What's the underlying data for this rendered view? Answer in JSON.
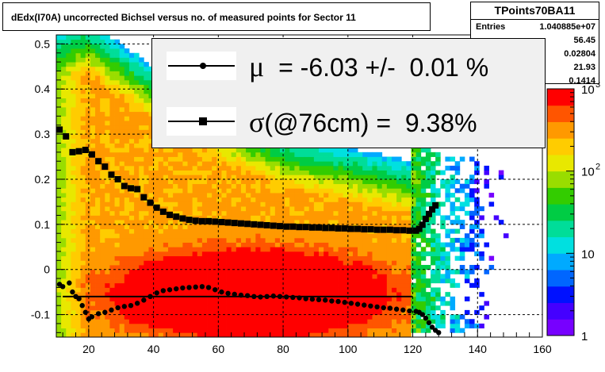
{
  "title": "dEdx(I70A) uncorrected Bichsel versus no. of measured points for Sector 11",
  "stats": {
    "name": "TPoints70BA11",
    "rows": [
      {
        "label": "Entries",
        "value": "1.040885e+07"
      },
      {
        "label": "",
        "value": "56.45"
      },
      {
        "label": "",
        "value": "0.02804"
      },
      {
        "label": "",
        "value": "21.93"
      },
      {
        "label": "",
        "value": "0.1414"
      }
    ]
  },
  "legend": {
    "mu_symbol": "μ",
    "mu_text": "  = -6.03 +/-  0.01 %",
    "sigma_symbol": "σ",
    "sigma_text": "(@76cm) =  9.38%"
  },
  "colorbar": {
    "tick_labels": [
      "1",
      "10",
      "10",
      "10"
    ],
    "exponents": [
      "",
      "",
      "2",
      "3"
    ]
  },
  "chart_data": {
    "type": "heatmap",
    "title": "dEdx(I70A) uncorrected Bichsel versus no. of measured points for Sector 11",
    "xlabel": "",
    "ylabel": "",
    "xlim": [
      10,
      160
    ],
    "ylim": [
      -0.15,
      0.52
    ],
    "x_ticks": [
      20,
      40,
      60,
      80,
      100,
      120,
      140,
      160
    ],
    "y_ticks": [
      -0.1,
      0,
      0.1,
      0.2,
      0.3,
      0.4,
      0.5
    ],
    "z_scale": "log",
    "zlim": [
      1,
      1000
    ],
    "grid": true,
    "palette": [
      "#7700ff",
      "#4400ff",
      "#0011ff",
      "#0066ff",
      "#00aaff",
      "#00e0e0",
      "#00dd99",
      "#00cc44",
      "#33cc00",
      "#99dd00",
      "#e8e800",
      "#ffcc00",
      "#ff9900",
      "#ff5500",
      "#ff0000"
    ],
    "density_model": {
      "core": {
        "x": 70,
        "y": -0.055,
        "sx": 22,
        "sy": 0.05,
        "amp": 2.9
      },
      "band_top_y": [
        [
          10,
          0.55
        ],
        [
          20,
          0.55
        ],
        [
          40,
          0.45
        ],
        [
          60,
          0.36
        ],
        [
          80,
          0.3
        ],
        [
          100,
          0.27
        ],
        [
          120,
          0.24
        ],
        [
          130,
          0.2
        ]
      ],
      "band_bottom_y": -0.15,
      "x_edge": 120,
      "tail_x_max": 148
    },
    "series": [
      {
        "name": "sigma",
        "marker": "square",
        "points": [
          [
            11,
            0.31
          ],
          [
            13,
            0.295
          ],
          [
            15,
            0.26
          ],
          [
            17,
            0.262
          ],
          [
            19,
            0.265
          ],
          [
            21,
            0.255
          ],
          [
            23,
            0.24
          ],
          [
            25,
            0.228
          ],
          [
            27,
            0.21
          ],
          [
            29,
            0.2
          ],
          [
            31,
            0.185
          ],
          [
            33,
            0.18
          ],
          [
            35,
            0.178
          ],
          [
            37,
            0.16
          ],
          [
            39,
            0.148
          ],
          [
            41,
            0.137
          ],
          [
            43,
            0.128
          ],
          [
            45,
            0.121
          ],
          [
            47,
            0.117
          ],
          [
            49,
            0.113
          ],
          [
            51,
            0.11
          ],
          [
            53,
            0.108
          ],
          [
            55,
            0.107
          ],
          [
            57,
            0.107
          ],
          [
            59,
            0.106
          ],
          [
            61,
            0.105
          ],
          [
            63,
            0.104
          ],
          [
            65,
            0.103
          ],
          [
            67,
            0.102
          ],
          [
            69,
            0.101
          ],
          [
            71,
            0.1
          ],
          [
            73,
            0.099
          ],
          [
            75,
            0.098
          ],
          [
            77,
            0.097
          ],
          [
            79,
            0.096
          ],
          [
            81,
            0.095
          ],
          [
            83,
            0.095
          ],
          [
            85,
            0.094
          ],
          [
            87,
            0.094
          ],
          [
            89,
            0.093
          ],
          [
            91,
            0.093
          ],
          [
            93,
            0.092
          ],
          [
            95,
            0.092
          ],
          [
            97,
            0.091
          ],
          [
            99,
            0.091
          ],
          [
            101,
            0.09
          ],
          [
            103,
            0.09
          ],
          [
            105,
            0.089
          ],
          [
            107,
            0.089
          ],
          [
            109,
            0.088
          ],
          [
            111,
            0.088
          ],
          [
            113,
            0.088
          ],
          [
            115,
            0.087
          ],
          [
            117,
            0.087
          ],
          [
            119,
            0.086
          ],
          [
            121,
            0.086
          ],
          [
            122,
            0.09
          ],
          [
            123,
            0.099
          ],
          [
            124,
            0.112
          ],
          [
            125,
            0.123
          ],
          [
            126,
            0.133
          ],
          [
            127,
            0.142
          ]
        ]
      },
      {
        "name": "mu",
        "marker": "circle",
        "points": [
          [
            11,
            -0.033
          ],
          [
            12,
            -0.038
          ],
          [
            14,
            -0.03
          ],
          [
            15,
            -0.05
          ],
          [
            16,
            -0.06
          ],
          [
            17,
            -0.065
          ],
          [
            18,
            -0.08
          ],
          [
            19,
            -0.095
          ],
          [
            20,
            -0.11
          ],
          [
            21,
            -0.105
          ],
          [
            23,
            -0.098
          ],
          [
            25,
            -0.095
          ],
          [
            27,
            -0.09
          ],
          [
            29,
            -0.085
          ],
          [
            31,
            -0.082
          ],
          [
            33,
            -0.08
          ],
          [
            35,
            -0.075
          ],
          [
            37,
            -0.068
          ],
          [
            39,
            -0.06
          ],
          [
            41,
            -0.052
          ],
          [
            43,
            -0.047
          ],
          [
            45,
            -0.045
          ],
          [
            47,
            -0.043
          ],
          [
            49,
            -0.041
          ],
          [
            51,
            -0.04
          ],
          [
            53,
            -0.039
          ],
          [
            55,
            -0.038
          ],
          [
            57,
            -0.04
          ],
          [
            59,
            -0.045
          ],
          [
            61,
            -0.05
          ],
          [
            63,
            -0.053
          ],
          [
            65,
            -0.055
          ],
          [
            67,
            -0.057
          ],
          [
            69,
            -0.058
          ],
          [
            71,
            -0.06
          ],
          [
            73,
            -0.061
          ],
          [
            75,
            -0.06
          ],
          [
            77,
            -0.059
          ],
          [
            79,
            -0.06
          ],
          [
            81,
            -0.061
          ],
          [
            83,
            -0.062
          ],
          [
            85,
            -0.063
          ],
          [
            87,
            -0.065
          ],
          [
            89,
            -0.066
          ],
          [
            91,
            -0.067
          ],
          [
            93,
            -0.068
          ],
          [
            95,
            -0.07
          ],
          [
            97,
            -0.071
          ],
          [
            99,
            -0.073
          ],
          [
            101,
            -0.075
          ],
          [
            103,
            -0.077
          ],
          [
            105,
            -0.079
          ],
          [
            107,
            -0.081
          ],
          [
            109,
            -0.083
          ],
          [
            111,
            -0.085
          ],
          [
            113,
            -0.086
          ],
          [
            115,
            -0.088
          ],
          [
            117,
            -0.09
          ],
          [
            119,
            -0.092
          ],
          [
            121,
            -0.093
          ],
          [
            122,
            -0.095
          ],
          [
            123,
            -0.1
          ],
          [
            124,
            -0.108
          ],
          [
            125,
            -0.118
          ],
          [
            126,
            -0.128
          ],
          [
            127,
            -0.135
          ],
          [
            128,
            -0.14
          ]
        ]
      }
    ],
    "reference_line": {
      "y": -0.06,
      "x_start": 12,
      "x_end": 120
    }
  }
}
